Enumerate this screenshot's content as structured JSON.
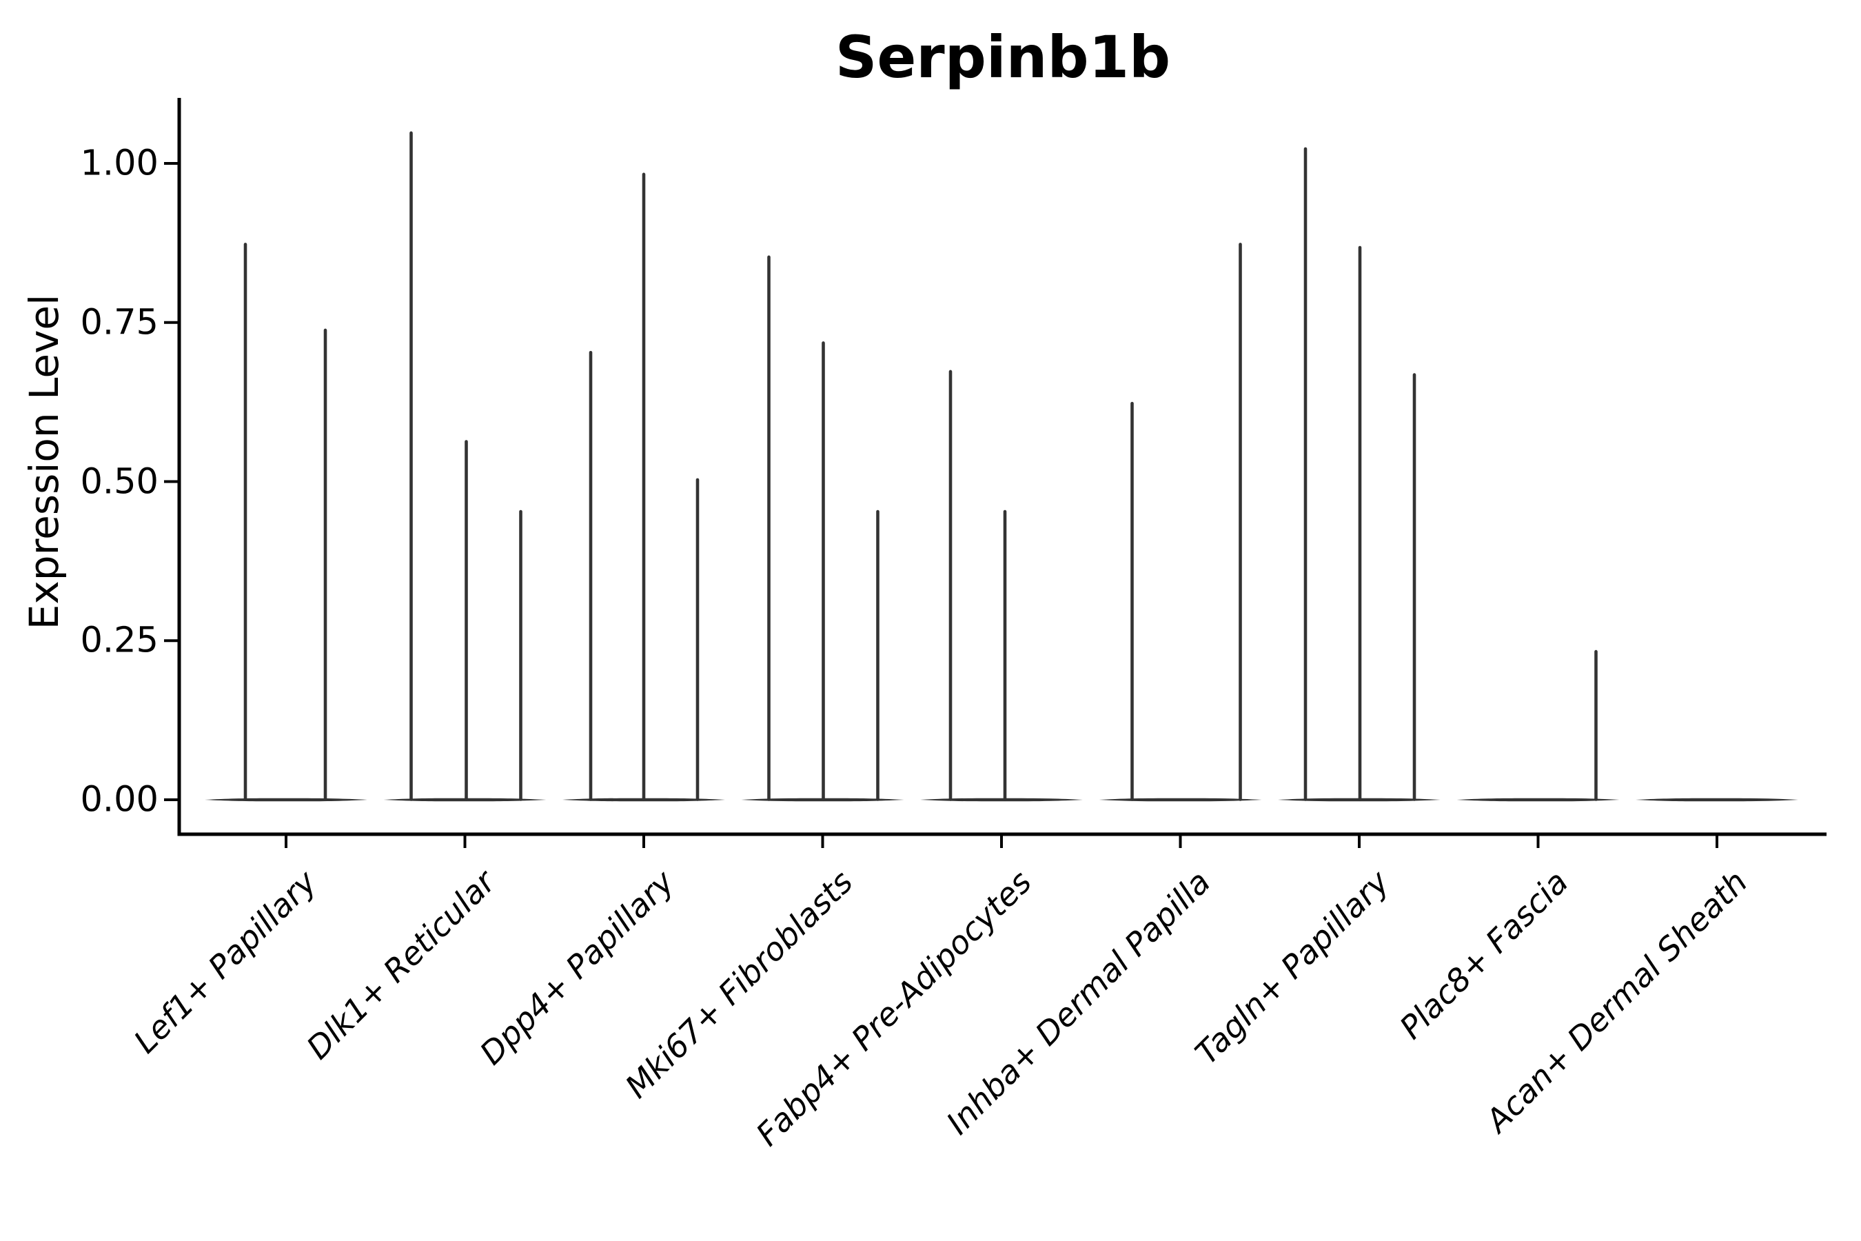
{
  "figure": {
    "title": "Serpinb1b",
    "y_axis_label": "Expression Level"
  },
  "chart_data": {
    "type": "violin",
    "title": "Serpinb1b",
    "xlabel": "",
    "ylabel": "Expression Level",
    "ylim": [
      -0.05,
      1.1
    ],
    "grid": false,
    "legend": "none",
    "y_ticks": [
      {
        "value": 0.0,
        "label": "0.00"
      },
      {
        "value": 0.25,
        "label": "0.25"
      },
      {
        "value": 0.5,
        "label": "0.50"
      },
      {
        "value": 0.75,
        "label": "0.75"
      },
      {
        "value": 1.0,
        "label": "1.00"
      }
    ],
    "categories": [
      "Lef1+ Papillary",
      "Dlk1+ Reticular",
      "Dpp4+ Papillary",
      "Mki67+ Fibroblasts",
      "Fabp4+ Pre-Adipocytes",
      "Inhba+ Dermal Papilla",
      "Tagln+ Papillary",
      "Plac8+ Fascia",
      "Acan+ Dermal Sheath"
    ],
    "series": [
      {
        "category": "Lef1+ Papillary",
        "violins": [
          {
            "dx": -59,
            "max": 0.875
          },
          {
            "dx": 57,
            "max": 0.74
          }
        ]
      },
      {
        "category": "Dlk1+ Reticular",
        "violins": [
          {
            "dx": -78,
            "max": 1.05
          },
          {
            "dx": 2,
            "max": 0.565
          },
          {
            "dx": 81,
            "max": 0.455
          }
        ]
      },
      {
        "category": "Dpp4+ Papillary",
        "violins": [
          {
            "dx": -77,
            "max": 0.705
          },
          {
            "dx": 0,
            "max": 0.985
          },
          {
            "dx": 78,
            "max": 0.505
          }
        ]
      },
      {
        "category": "Mki67+ Fibroblasts",
        "violins": [
          {
            "dx": -78,
            "max": 0.855
          },
          {
            "dx": 1,
            "max": 0.72
          },
          {
            "dx": 80,
            "max": 0.455
          }
        ]
      },
      {
        "category": "Fabp4+ Pre-Adipocytes",
        "violins": [
          {
            "dx": -74,
            "max": 0.675
          },
          {
            "dx": 5,
            "max": 0.455
          }
        ]
      },
      {
        "category": "Inhba+ Dermal Papilla",
        "violins": [
          {
            "dx": -70,
            "max": 0.625
          },
          {
            "dx": 87,
            "max": 0.875
          }
        ]
      },
      {
        "category": "Tagln+ Papillary",
        "violins": [
          {
            "dx": -78,
            "max": 1.025
          },
          {
            "dx": 1,
            "max": 0.87
          },
          {
            "dx": 80,
            "max": 0.67
          }
        ]
      },
      {
        "category": "Plac8+ Fascia",
        "violins": [
          {
            "dx": 84,
            "max": 0.235
          }
        ]
      },
      {
        "category": "Acan+ Dermal Sheath",
        "violins": []
      }
    ],
    "style": {
      "violin_color": "#333333",
      "axis_color": "#000000",
      "background": "#ffffff",
      "x_label_rotation_deg": 45,
      "x_labels_italic": true,
      "spines": "left-bottom-only"
    }
  }
}
